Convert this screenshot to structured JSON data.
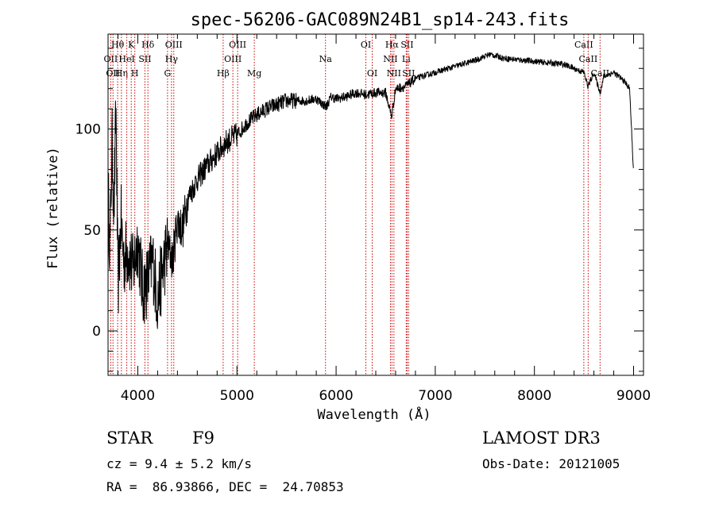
{
  "chart_data": {
    "type": "line",
    "title": "spec-56206-GAC089N24B1_sp14-243.fits",
    "xlabel": "Wavelength (Å)",
    "ylabel": "Flux (relative)",
    "xlim": [
      3700,
      9100
    ],
    "ylim": [
      -22,
      147
    ],
    "xticks": [
      4000,
      5000,
      6000,
      7000,
      8000,
      9000
    ],
    "xtick_labels": [
      "4000",
      "5000",
      "6000",
      "7000",
      "8000",
      "9000"
    ],
    "yticks": [
      0,
      50,
      100
    ],
    "ytick_labels": [
      "0",
      "50",
      "100"
    ],
    "series": [
      {
        "name": "flux",
        "x": [
          3700,
          3720,
          3740,
          3760,
          3780,
          3800,
          3830,
          3860,
          3900,
          3950,
          4000,
          4050,
          4100,
          4150,
          4200,
          4250,
          4300,
          4350,
          4400,
          4450,
          4500,
          4600,
          4700,
          4800,
          4900,
          5000,
          5100,
          5200,
          5300,
          5400,
          5500,
          5600,
          5700,
          5800,
          5900,
          5950,
          6000,
          6100,
          6200,
          6300,
          6400,
          6500,
          6560,
          6600,
          6700,
          6800,
          7000,
          7200,
          7400,
          7550,
          7700,
          7900,
          8100,
          8300,
          8500,
          8540,
          8600,
          8662,
          8700,
          8800,
          8900,
          8960,
          9000
        ],
        "y": [
          70,
          40,
          95,
          60,
          110,
          20,
          55,
          35,
          40,
          30,
          45,
          20,
          25,
          35,
          15,
          30,
          42,
          35,
          55,
          50,
          65,
          75,
          82,
          88,
          94,
          97,
          103,
          107,
          110,
          112,
          114,
          114,
          114,
          115,
          111,
          116,
          115,
          116,
          118,
          117,
          118,
          118,
          106,
          120,
          121,
          125,
          128,
          131,
          134,
          137,
          135,
          134,
          133,
          132,
          128,
          121,
          128,
          118,
          126,
          128,
          124,
          120,
          78
        ]
      }
    ],
    "line_markers": [
      {
        "wavelength": 3727,
        "label": "OII",
        "row": 1
      },
      {
        "wavelength": 3750,
        "label": "OII",
        "row": 2
      },
      {
        "wavelength": 3797,
        "label": "Hθ",
        "row": 0
      },
      {
        "wavelength": 3835,
        "label": "Hη",
        "row": 2
      },
      {
        "wavelength": 3889,
        "label": "HeI",
        "row": 1
      },
      {
        "wavelength": 3934,
        "label": "K",
        "row": 0
      },
      {
        "wavelength": 3970,
        "label": "H",
        "row": 2
      },
      {
        "wavelength": 4072,
        "label": "SII",
        "row": 1
      },
      {
        "wavelength": 4102,
        "label": "Hδ",
        "row": 0
      },
      {
        "wavelength": 4300,
        "label": "G",
        "row": 2
      },
      {
        "wavelength": 4340,
        "label": "Hγ",
        "row": 1
      },
      {
        "wavelength": 4363,
        "label": "OIII",
        "row": 0
      },
      {
        "wavelength": 4861,
        "label": "Hβ",
        "row": 2
      },
      {
        "wavelength": 4959,
        "label": "OIII",
        "row": 1
      },
      {
        "wavelength": 5007,
        "label": "OIII",
        "row": 0
      },
      {
        "wavelength": 5175,
        "label": "Mg",
        "row": 2
      },
      {
        "wavelength": 5893,
        "label": "Na",
        "row": 1
      },
      {
        "wavelength": 6300,
        "label": "OI",
        "row": 0
      },
      {
        "wavelength": 6364,
        "label": "OI",
        "row": 2
      },
      {
        "wavelength": 6548,
        "label": "NII",
        "row": 1
      },
      {
        "wavelength": 6563,
        "label": "Hα",
        "row": 0
      },
      {
        "wavelength": 6583,
        "label": "NII",
        "row": 2
      },
      {
        "wavelength": 6707,
        "label": "Li",
        "row": 1
      },
      {
        "wavelength": 6716,
        "label": "SII",
        "row": 0
      },
      {
        "wavelength": 6731,
        "label": "SII",
        "row": 2
      },
      {
        "wavelength": 8498,
        "label": "CaII",
        "row": 0
      },
      {
        "wavelength": 8542,
        "label": "CaII",
        "row": 1
      },
      {
        "wavelength": 8662,
        "label": "CaII",
        "row": 2
      }
    ],
    "colors": {
      "spectrum": "#000000",
      "marker": "#cc0000",
      "axis": "#000000"
    }
  },
  "info": {
    "object_class": "STAR",
    "subclass": "F9",
    "redshift_text": "cz = 9.4 ± 5.2 km/s",
    "coords_text": "RA =  86.93866, DEC =  24.70853",
    "survey": "LAMOST DR3",
    "obs_date": "Obs-Date: 20121005"
  }
}
